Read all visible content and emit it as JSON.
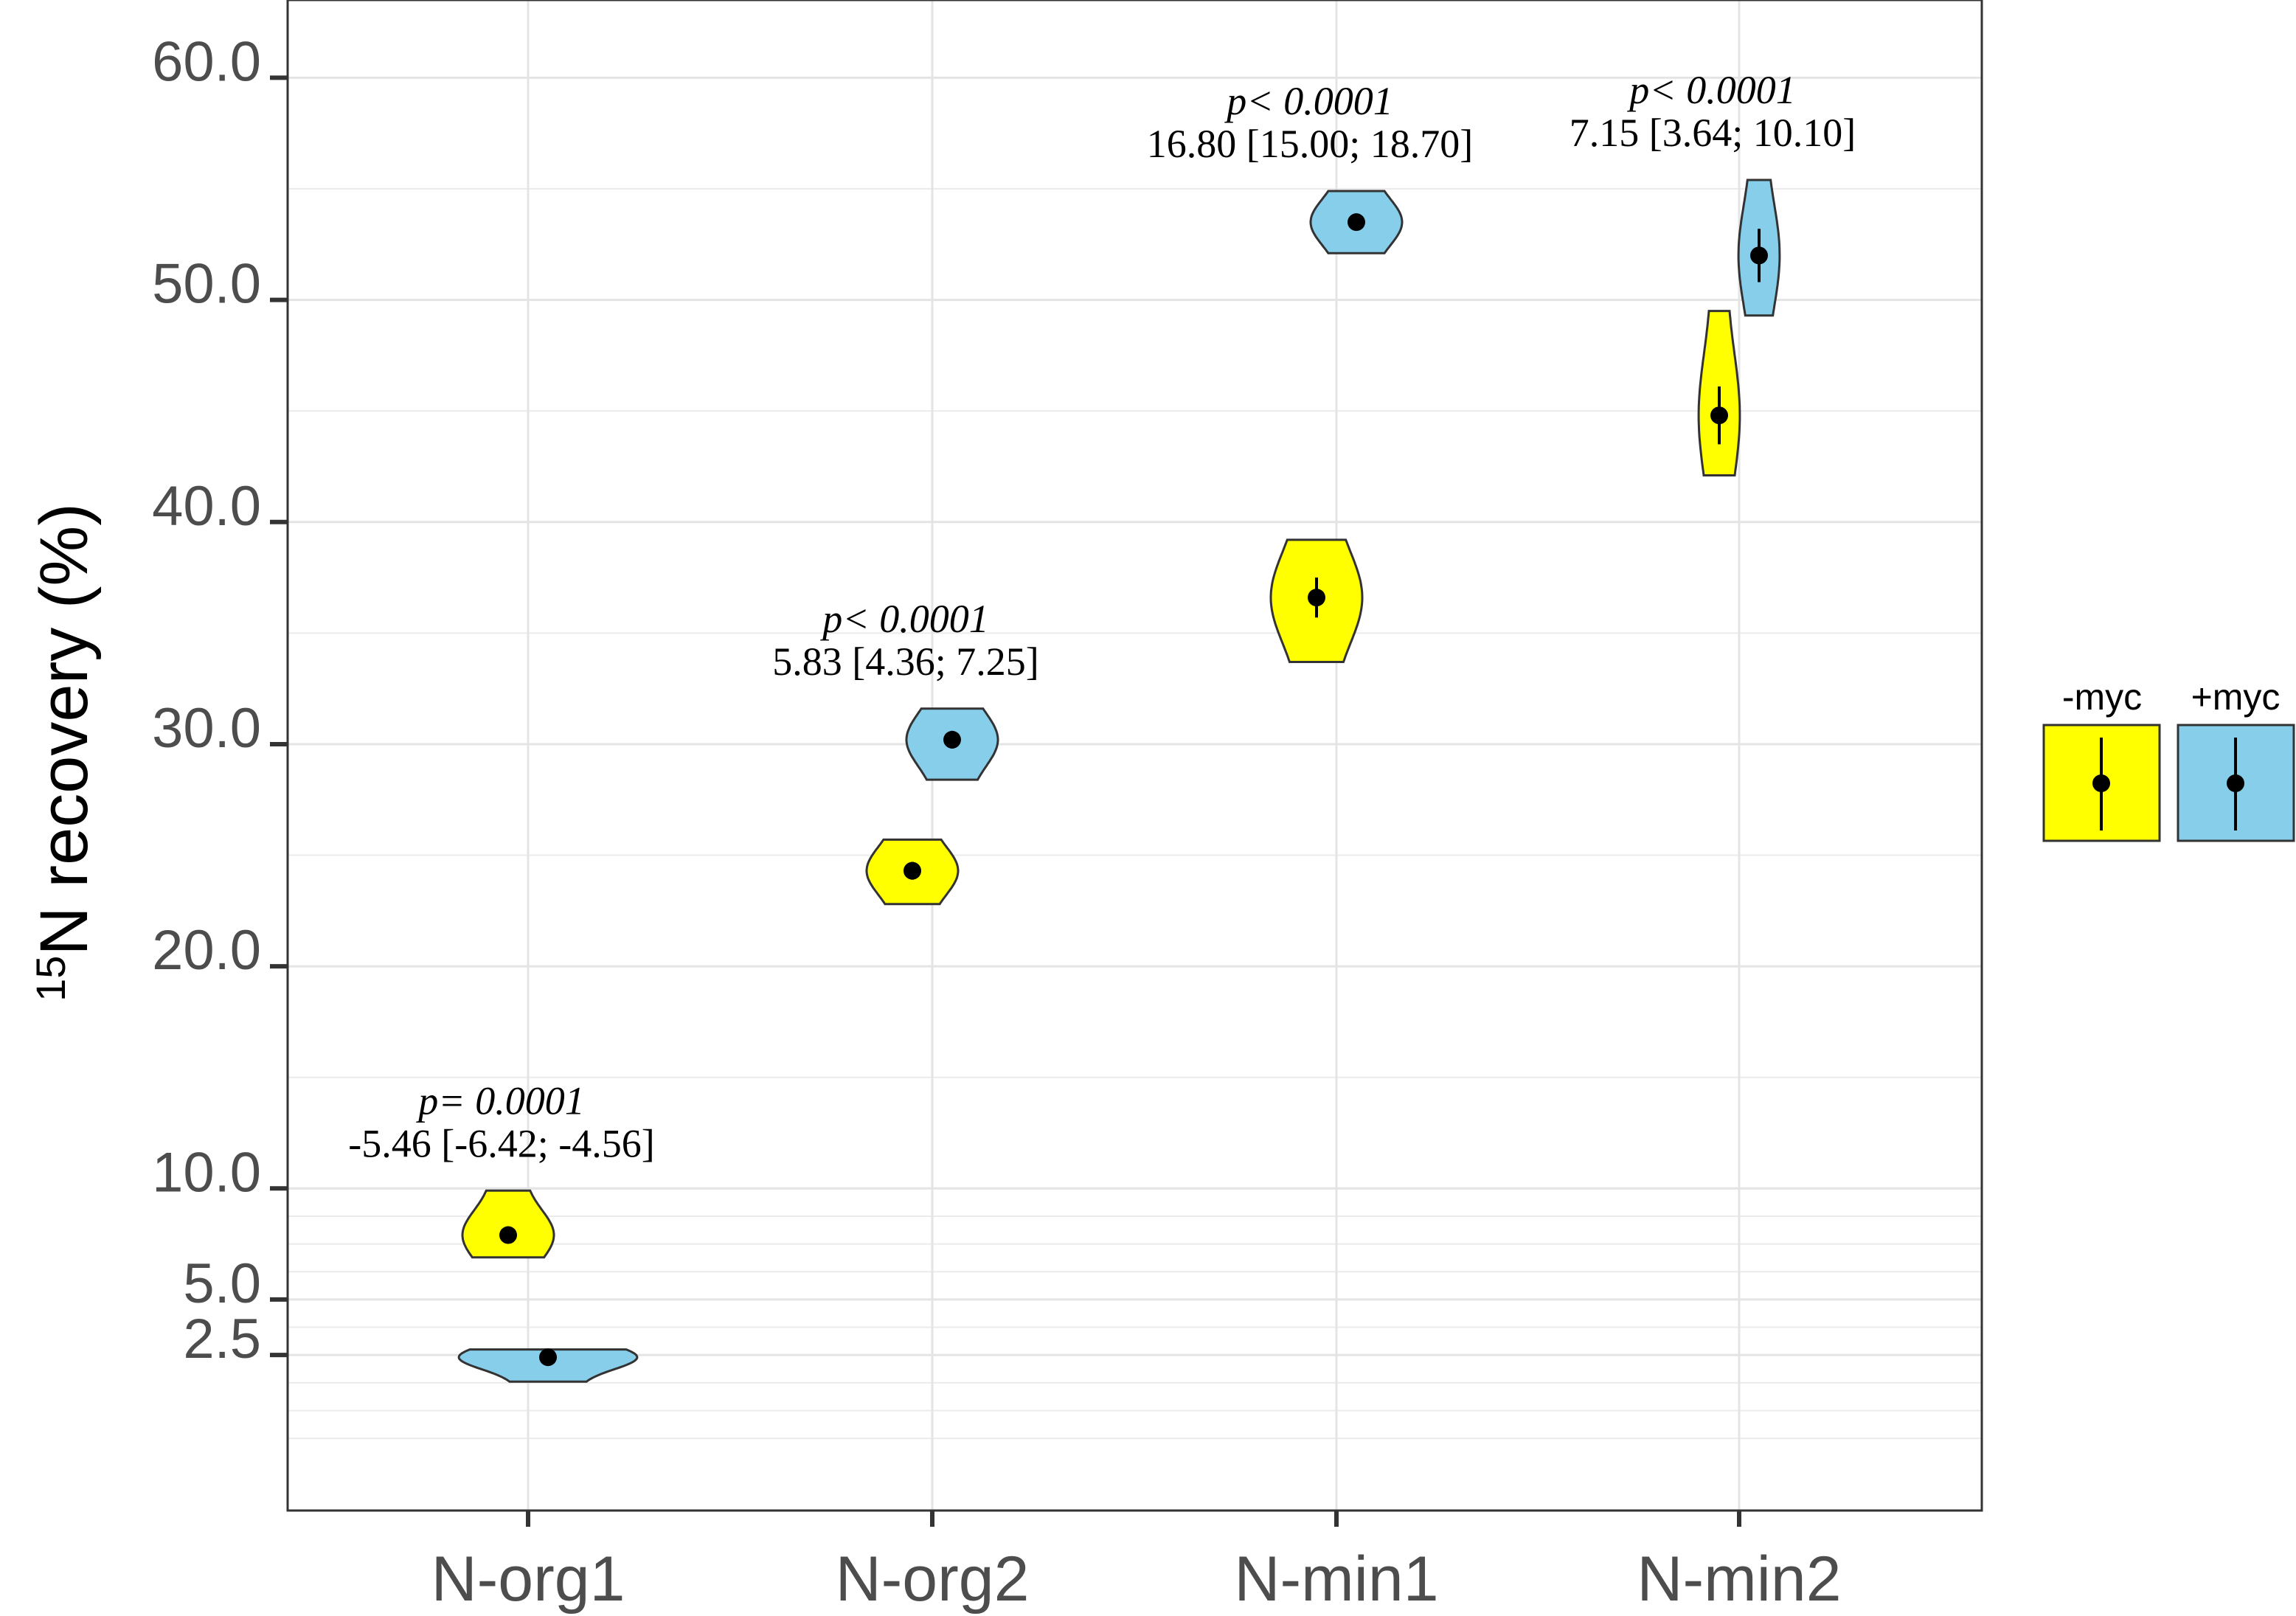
{
  "chart_data": {
    "type": "violin",
    "ylabel_sup": "15",
    "ylabel_main": "N recovery (%)",
    "ylim": [
      -4.5,
      63.5
    ],
    "y_ticks": [
      {
        "value": 2.5,
        "label": "2.5"
      },
      {
        "value": 5.0,
        "label": "5.0"
      },
      {
        "value": 10.0,
        "label": "10.0"
      },
      {
        "value": 20.0,
        "label": "20.0"
      },
      {
        "value": 30.0,
        "label": "30.0"
      },
      {
        "value": 40.0,
        "label": "40.0"
      },
      {
        "value": 50.0,
        "label": "50.0"
      },
      {
        "value": 60.0,
        "label": "60.0"
      }
    ],
    "y_minor_grid": [
      -1.25,
      0.0,
      1.25,
      3.75,
      6.25,
      7.5,
      8.75,
      15.0,
      25.0,
      35.0,
      45.0,
      55.0
    ],
    "categories": [
      "N-org1",
      "N-org2",
      "N-min1",
      "N-min2"
    ],
    "series": [
      {
        "name": "-myc",
        "color": "#ffff00",
        "groups": [
          {
            "category": "N-org1",
            "mean": 7.9,
            "lower": 7.7,
            "upper": 8.1,
            "min": 6.9,
            "max": 9.9
          },
          {
            "category": "N-org2",
            "mean": 24.3,
            "lower": 23.9,
            "upper": 24.7,
            "min": 22.8,
            "max": 25.7
          },
          {
            "category": "N-min1",
            "mean": 36.6,
            "lower": 35.7,
            "upper": 37.5,
            "min": 33.7,
            "max": 39.2
          },
          {
            "category": "N-min2",
            "mean": 44.8,
            "lower": 43.5,
            "upper": 46.1,
            "min": 42.1,
            "max": 49.5
          }
        ]
      },
      {
        "name": "+myc",
        "color": "#87ceeb",
        "groups": [
          {
            "category": "N-org1",
            "mean": 2.4,
            "lower": 2.3,
            "upper": 2.5,
            "min": 1.3,
            "max": 2.75
          },
          {
            "category": "N-org2",
            "mean": 30.2,
            "lower": 29.8,
            "upper": 30.6,
            "min": 28.4,
            "max": 31.6
          },
          {
            "category": "N-min1",
            "mean": 53.5,
            "lower": 53.3,
            "upper": 53.7,
            "min": 52.1,
            "max": 54.9
          },
          {
            "category": "N-min2",
            "mean": 52.0,
            "lower": 50.8,
            "upper": 53.2,
            "min": 49.3,
            "max": 55.4
          }
        ]
      }
    ],
    "annotations": [
      {
        "category": "N-org1",
        "p": "p= 0.0001",
        "ci": "-5.46 [-6.42; -4.56]"
      },
      {
        "category": "N-org2",
        "p": "p< 0.0001",
        "ci": "5.83 [4.36; 7.25]"
      },
      {
        "category": "N-min1",
        "p": "p< 0.0001",
        "ci": "16.80 [15.00; 18.70]"
      },
      {
        "category": "N-min2",
        "p": "p< 0.0001",
        "ci": "7.15 [3.64; 10.10]"
      }
    ],
    "legend": {
      "position": "right",
      "items": [
        {
          "label": "-myc",
          "color": "#ffff00"
        },
        {
          "label": "+myc",
          "color": "#87ceeb"
        }
      ]
    }
  }
}
